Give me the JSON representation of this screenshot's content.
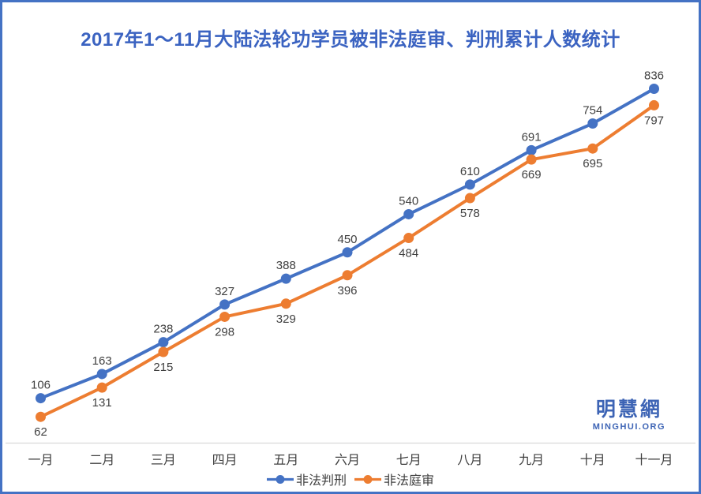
{
  "colors": {
    "background": "#FFFFFF",
    "border": "#4472C4",
    "title": "#3B63C1",
    "axis_line": "#D9D9D9",
    "data_label": "#404040",
    "month_label": "#404040",
    "watermark": "#3D64B5"
  },
  "chart_data": {
    "type": "line",
    "title": "2017年1～11月大陆法轮功学员被非法庭审、判刑累计人数统计",
    "categories": [
      "一月",
      "二月",
      "三月",
      "四月",
      "五月",
      "六月",
      "七月",
      "八月",
      "九月",
      "十月",
      "十一月"
    ],
    "series": [
      {
        "key": "sentenced",
        "name": "非法判刑",
        "color": "#4472C4",
        "values": [
          106,
          163,
          238,
          327,
          388,
          450,
          540,
          610,
          691,
          754,
          836
        ],
        "label_position": "above"
      },
      {
        "key": "tried",
        "name": "非法庭审",
        "color": "#ED7D31",
        "values": [
          62,
          131,
          215,
          298,
          329,
          396,
          484,
          578,
          669,
          695,
          797
        ],
        "label_position": "below"
      }
    ],
    "xlabel": "",
    "ylabel": "",
    "ylim": [
      0,
      900
    ],
    "grid": false,
    "y_axis_shown": false,
    "data_labels_shown": true,
    "legend_position": "bottom"
  },
  "watermark": {
    "name": "明慧網",
    "site": "MINGHUI.ORG"
  }
}
